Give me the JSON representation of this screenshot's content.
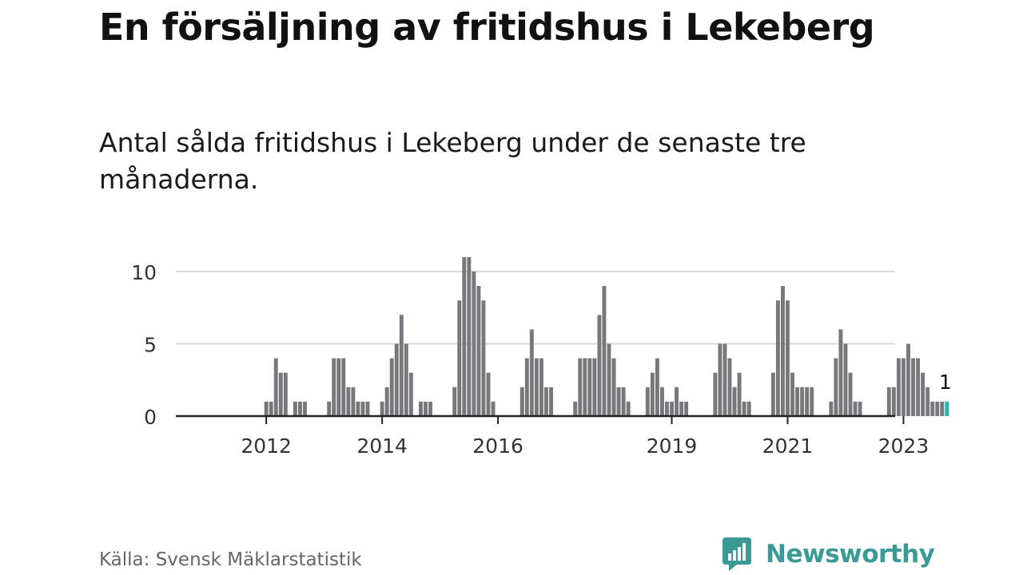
{
  "header": {
    "title": "En försäljning av fritidshus i Lekeberg",
    "subtitle": "Antal sålda fritidshus i Lekeberg under de senaste tre månaderna."
  },
  "footer": {
    "source": "Källa: Svensk Mäklarstatistik",
    "brand": "Newsworthy",
    "brand_logo_icon": "bar-chart-speech-bubble-icon"
  },
  "colors": {
    "bar": "#77777c",
    "highlight": "#2bb3ad",
    "grid": "#d9d9d9",
    "axis": "#222222",
    "tick_text": "#333333",
    "brand": "#3a9b96"
  },
  "chart_data": {
    "type": "bar",
    "title": "",
    "xlabel": "",
    "ylabel": "",
    "ylim": [
      0,
      11
    ],
    "y_ticks": [
      0,
      5,
      10
    ],
    "grid": true,
    "legend": "none",
    "x_tick_labels": [
      "2012",
      "2014",
      "2016",
      "2019",
      "2021",
      "2023"
    ],
    "start_month": "2011-01",
    "end_month": "2023-05",
    "values": [
      0,
      0,
      0,
      0,
      0,
      0,
      0,
      0,
      0,
      0,
      0,
      0,
      0,
      0,
      0,
      0,
      0,
      0,
      1,
      1,
      4,
      3,
      3,
      0,
      1,
      1,
      1,
      0,
      0,
      0,
      0,
      1,
      4,
      4,
      4,
      2,
      2,
      1,
      1,
      1,
      0,
      0,
      1,
      2,
      4,
      5,
      7,
      5,
      3,
      0,
      1,
      1,
      1,
      0,
      0,
      0,
      0,
      2,
      8,
      11,
      11,
      10,
      9,
      8,
      3,
      1,
      0,
      0,
      0,
      0,
      0,
      2,
      4,
      6,
      4,
      4,
      2,
      2,
      0,
      0,
      0,
      0,
      1,
      4,
      4,
      4,
      4,
      7,
      9,
      5,
      4,
      2,
      2,
      1,
      0,
      0,
      0,
      2,
      3,
      4,
      2,
      1,
      1,
      2,
      1,
      1,
      0,
      0,
      0,
      0,
      0,
      3,
      5,
      5,
      4,
      2,
      3,
      1,
      1,
      0,
      0,
      0,
      0,
      3,
      8,
      9,
      8,
      3,
      2,
      2,
      2,
      2,
      0,
      0,
      0,
      1,
      4,
      6,
      5,
      3,
      1,
      1,
      0,
      0,
      0,
      0,
      0,
      2,
      2,
      4,
      4,
      5,
      4,
      4,
      3,
      2,
      1,
      1,
      1,
      1
    ],
    "highlight_value": 1,
    "highlight_label": "1"
  }
}
